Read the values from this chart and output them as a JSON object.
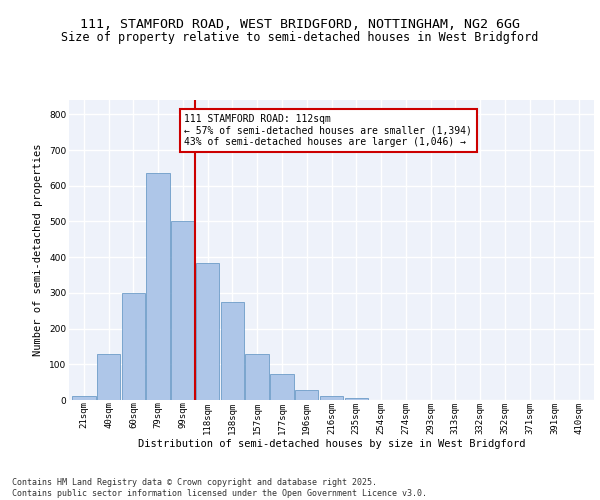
{
  "title_line1": "111, STAMFORD ROAD, WEST BRIDGFORD, NOTTINGHAM, NG2 6GG",
  "title_line2": "Size of property relative to semi-detached houses in West Bridgford",
  "xlabel": "Distribution of semi-detached houses by size in West Bridgford",
  "ylabel": "Number of semi-detached properties",
  "categories": [
    "21sqm",
    "40sqm",
    "60sqm",
    "79sqm",
    "99sqm",
    "118sqm",
    "138sqm",
    "157sqm",
    "177sqm",
    "196sqm",
    "216sqm",
    "235sqm",
    "254sqm",
    "274sqm",
    "293sqm",
    "313sqm",
    "332sqm",
    "352sqm",
    "371sqm",
    "391sqm",
    "410sqm"
  ],
  "values": [
    10,
    130,
    300,
    635,
    500,
    385,
    275,
    130,
    72,
    28,
    12,
    5,
    0,
    0,
    0,
    0,
    0,
    0,
    0,
    0,
    0
  ],
  "bar_color": "#aec6e8",
  "bar_edge_color": "#5a8fc0",
  "vline_x_index": 5,
  "vline_color": "#cc0000",
  "annotation_text": "111 STAMFORD ROAD: 112sqm\n← 57% of semi-detached houses are smaller (1,394)\n43% of semi-detached houses are larger (1,046) →",
  "annotation_box_color": "#ffffff",
  "annotation_box_edge": "#cc0000",
  "ylim": [
    0,
    840
  ],
  "yticks": [
    0,
    100,
    200,
    300,
    400,
    500,
    600,
    700,
    800
  ],
  "background_color": "#eef2fa",
  "grid_color": "#ffffff",
  "footer_text": "Contains HM Land Registry data © Crown copyright and database right 2025.\nContains public sector information licensed under the Open Government Licence v3.0.",
  "title_fontsize": 9.5,
  "subtitle_fontsize": 8.5,
  "axis_label_fontsize": 7.5,
  "tick_fontsize": 6.5,
  "annotation_fontsize": 7,
  "footer_fontsize": 6
}
